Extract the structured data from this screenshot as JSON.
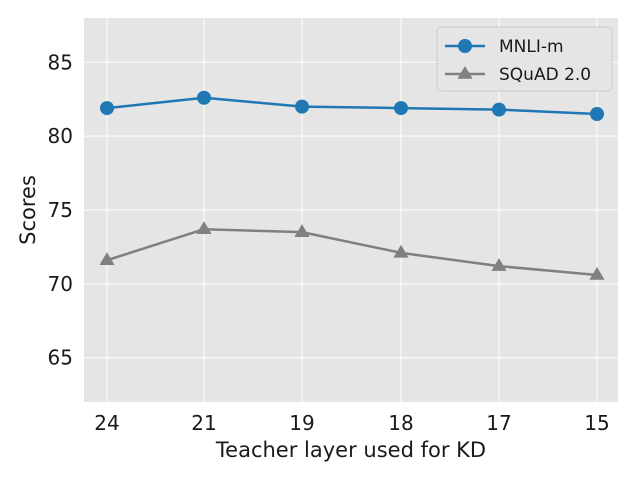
{
  "chart_data": {
    "type": "line",
    "xlabel": "Teacher layer used for KD",
    "ylabel": "Scores",
    "categories": [
      "24",
      "21",
      "19",
      "18",
      "17",
      "15"
    ],
    "ylim": [
      62,
      88
    ],
    "yticks": [
      65,
      70,
      75,
      80,
      85
    ],
    "grid": true,
    "legend_position": "top-right",
    "background_color": "#e5e5e5",
    "grid_color": "#ffffff",
    "series": [
      {
        "name": "MNLI-m",
        "marker": "circle",
        "color": "#1f77b4",
        "values": [
          81.9,
          82.6,
          82.0,
          81.9,
          81.8,
          81.5
        ]
      },
      {
        "name": "SQuAD 2.0",
        "marker": "triangle",
        "color": "#808080",
        "values": [
          71.6,
          73.7,
          73.5,
          72.1,
          71.2,
          70.6
        ]
      }
    ]
  }
}
